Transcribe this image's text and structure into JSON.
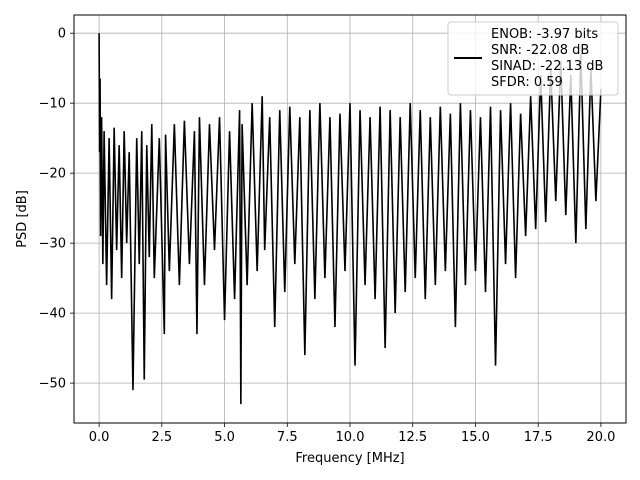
{
  "chart_data": {
    "type": "line",
    "title": "",
    "xlabel": "Frequency [MHz]",
    "ylabel": "PSD [dB]",
    "xlim": [
      -1.0,
      21.0
    ],
    "ylim": [
      -55.7,
      2.6
    ],
    "xticks": [
      0.0,
      2.5,
      5.0,
      7.5,
      10.0,
      12.5,
      15.0,
      17.5,
      20.0
    ],
    "xtick_labels": [
      "0.0",
      "2.5",
      "5.0",
      "7.5",
      "10.0",
      "12.5",
      "15.0",
      "17.5",
      "20.0"
    ],
    "yticks": [
      0,
      -10,
      -20,
      -30,
      -40,
      -50
    ],
    "ytick_labels": [
      "0",
      "−10",
      "−20",
      "−30",
      "−40",
      "−50"
    ],
    "grid": true,
    "legend_position": "top-right",
    "line_color": "#000000",
    "legend": [
      "ENOB: -3.97 bits",
      "SNR: -22.08 dB",
      "SINAD: -22.13 dB",
      "SFDR: 0.59"
    ],
    "series": [
      {
        "x": [
          0.0,
          0.02,
          0.04,
          0.06,
          0.1,
          0.15,
          0.2,
          0.3,
          0.4,
          0.5,
          0.6,
          0.7,
          0.8,
          0.9,
          1.0,
          1.1,
          1.2,
          1.35,
          1.5,
          1.6,
          1.7,
          1.8,
          1.9,
          2.0,
          2.1,
          2.2,
          2.4,
          2.6,
          2.65,
          2.8,
          3.0,
          3.2,
          3.4,
          3.6,
          3.8,
          3.9,
          4.0,
          4.2,
          4.4,
          4.6,
          4.8,
          5.0,
          5.2,
          5.4,
          5.6,
          5.65,
          5.7,
          5.9,
          6.1,
          6.3,
          6.5,
          6.6,
          6.8,
          7.0,
          7.2,
          7.4,
          7.6,
          7.8,
          8.0,
          8.2,
          8.4,
          8.6,
          8.8,
          9.0,
          9.2,
          9.4,
          9.6,
          9.8,
          10.0,
          10.2,
          10.4,
          10.6,
          10.8,
          11.0,
          11.2,
          11.4,
          11.6,
          11.8,
          12.0,
          12.2,
          12.4,
          12.6,
          12.8,
          13.0,
          13.2,
          13.4,
          13.6,
          13.8,
          14.0,
          14.2,
          14.4,
          14.6,
          14.8,
          15.0,
          15.2,
          15.4,
          15.6,
          15.8,
          16.0,
          16.2,
          16.4,
          16.6,
          16.8,
          17.0,
          17.2,
          17.4,
          17.6,
          17.8,
          18.0,
          18.2,
          18.4,
          18.6,
          18.8,
          19.0,
          19.2,
          19.4,
          19.6,
          19.8,
          20.0
        ],
        "values": [
          0.0,
          -17.0,
          -6.5,
          -29.0,
          -12.0,
          -33.0,
          -14.0,
          -36.0,
          -15.0,
          -38.0,
          -13.5,
          -31.0,
          -16.0,
          -35.0,
          -14.0,
          -30.0,
          -17.0,
          -51.0,
          -15.0,
          -33.0,
          -14.0,
          -49.5,
          -16.0,
          -32.0,
          -13.0,
          -35.0,
          -15.0,
          -43.0,
          -14.5,
          -34.0,
          -13.0,
          -36.0,
          -12.5,
          -33.0,
          -14.0,
          -43.0,
          -12.0,
          -36.0,
          -13.0,
          -31.0,
          -12.0,
          -41.0,
          -14.0,
          -38.0,
          -11.0,
          -53.0,
          -13.0,
          -36.0,
          -10.0,
          -34.0,
          -9.0,
          -31.0,
          -12.0,
          -42.0,
          -11.0,
          -37.0,
          -10.5,
          -33.0,
          -12.0,
          -46.0,
          -11.0,
          -38.0,
          -10.0,
          -35.0,
          -12.0,
          -42.0,
          -11.5,
          -34.0,
          -10.0,
          -47.5,
          -11.0,
          -36.0,
          -12.0,
          -38.0,
          -10.5,
          -45.0,
          -11.0,
          -40.0,
          -12.0,
          -37.0,
          -10.0,
          -35.0,
          -11.0,
          -38.0,
          -12.0,
          -36.0,
          -10.5,
          -34.0,
          -11.5,
          -42.0,
          -10.0,
          -36.0,
          -11.0,
          -34.0,
          -12.0,
          -37.0,
          -10.5,
          -47.5,
          -11.0,
          -33.0,
          -10.0,
          -35.0,
          -11.5,
          -29.0,
          -9.0,
          -28.0,
          -6.0,
          -27.0,
          -5.0,
          -24.0,
          -4.0,
          -26.0,
          -6.0,
          -30.0,
          -3.0,
          -28.0,
          -5.0,
          -24.0,
          -8.0
        ]
      }
    ]
  }
}
